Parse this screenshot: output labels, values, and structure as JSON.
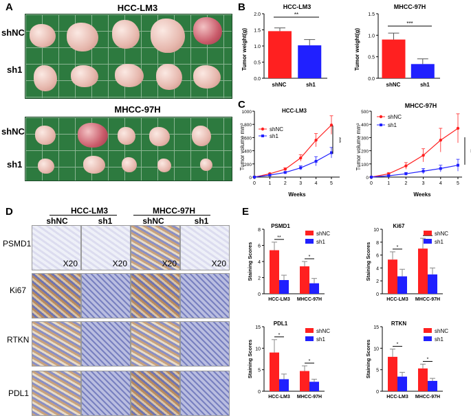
{
  "panel_letters": {
    "a": "A",
    "b": "B",
    "c": "C",
    "d": "D",
    "e": "E"
  },
  "panel_a": {
    "top_title": "HCC-LM3",
    "bottom_title": "MHCC-97H",
    "row_labels": {
      "top_1": "shNC",
      "top_2": "sh1",
      "bottom_1": "shNC",
      "bottom_2": "sh1"
    }
  },
  "panel_b": [
    {
      "title": "HCC-LM3",
      "ylabel": "Tumor weight(g)",
      "categories": [
        "shNC",
        "sh1"
      ],
      "sig": "**",
      "ticks": [
        "0.0",
        "0.5",
        "1.0",
        "1.5",
        "2.0"
      ]
    },
    {
      "title": "MHCC-97H",
      "ylabel": "Tumor weight(g)",
      "categories": [
        "shNC",
        "sh1"
      ],
      "sig": "***",
      "ticks": [
        "0.0",
        "0.5",
        "1.0",
        "1.5"
      ]
    }
  ],
  "panel_c": [
    {
      "title": "HCC-LM3",
      "ylabel": "Tumor volume mm³",
      "xlabel": "Weeks",
      "legend": [
        "shNC",
        "sh1"
      ],
      "sig": "***",
      "yticks": [
        "0",
        "200",
        "400",
        "600",
        "800",
        "1000"
      ],
      "xticks": [
        "0",
        "1",
        "2",
        "3",
        "4",
        "5"
      ]
    },
    {
      "title": "MHCC-97H",
      "ylabel": "Tumor volume mm³",
      "xlabel": "Weeks",
      "legend": [
        "shNC",
        "sh1"
      ],
      "sig": "**",
      "yticks": [
        "0",
        "100",
        "200",
        "300",
        "400",
        "500"
      ],
      "xticks": [
        "0",
        "1",
        "2",
        "3",
        "4",
        "5"
      ]
    }
  ],
  "panel_d": {
    "group_1": "HCC-LM3",
    "group_2": "MHCC-97H",
    "col_labels": [
      "shNC",
      "sh1",
      "shNC",
      "sh1"
    ],
    "row_labels": [
      "PSMD1",
      "Ki67",
      "RTKN",
      "PDL1"
    ],
    "magnification": "X20"
  },
  "panel_e": [
    {
      "title": "PSMD1",
      "ylabel": "Staining Scores",
      "legend": [
        "shNC",
        "sh1"
      ],
      "categories": [
        "HCC-LM3",
        "MHCC-97H"
      ],
      "sigs": [
        "**",
        "*"
      ],
      "yticks": [
        "0",
        "2",
        "4",
        "6",
        "8"
      ]
    },
    {
      "title": "Ki67",
      "ylabel": "Staining Scores",
      "legend": [
        "shNC",
        "sh1"
      ],
      "categories": [
        "HCC-LM3",
        "MHCC-97H"
      ],
      "sigs": [
        "*",
        "*"
      ],
      "yticks": [
        "0",
        "2",
        "4",
        "6",
        "8",
        "10"
      ]
    },
    {
      "title": "PDL1",
      "ylabel": "Staining Scores",
      "legend": [
        "shNC",
        "sh1"
      ],
      "categories": [
        "HCC-LM3",
        "MHCC-97H"
      ],
      "sigs": [
        "*",
        "*"
      ],
      "yticks": [
        "0",
        "5",
        "10",
        "15"
      ]
    },
    {
      "title": "RTKN",
      "ylabel": "Staining Scores",
      "legend": [
        "shNC",
        "sh1"
      ],
      "categories": [
        "HCC-LM3",
        "MHCC-97H"
      ],
      "sigs": [
        "*",
        "*"
      ],
      "yticks": [
        "0",
        "5",
        "10",
        "15"
      ]
    }
  ],
  "colors": {
    "shNC": "#ff2020",
    "sh1": "#2020ff"
  },
  "chart_data": [
    {
      "type": "bar",
      "title": "HCC-LM3",
      "ylabel": "Tumor weight(g)",
      "categories": [
        "shNC",
        "sh1"
      ],
      "values": [
        1.46,
        1.02
      ],
      "errors": [
        0.1,
        0.18
      ],
      "ylim": [
        0,
        2.0
      ]
    },
    {
      "type": "bar",
      "title": "MHCC-97H",
      "ylabel": "Tumor weight(g)",
      "categories": [
        "shNC",
        "sh1"
      ],
      "values": [
        0.9,
        0.33
      ],
      "errors": [
        0.15,
        0.12
      ],
      "ylim": [
        0,
        1.5
      ]
    },
    {
      "type": "line",
      "title": "HCC-LM3",
      "xlabel": "Weeks",
      "ylabel": "Tumor volume mm³",
      "x": [
        0,
        1,
        2,
        3,
        4,
        5
      ],
      "ylim": [
        0,
        1000
      ],
      "series": [
        {
          "name": "shNC",
          "values": [
            0,
            50,
            120,
            290,
            560,
            790
          ],
          "errors": [
            0,
            10,
            20,
            50,
            100,
            140
          ]
        },
        {
          "name": "sh1",
          "values": [
            0,
            30,
            70,
            140,
            240,
            370
          ],
          "errors": [
            0,
            8,
            15,
            30,
            70,
            80
          ]
        }
      ]
    },
    {
      "type": "line",
      "title": "MHCC-97H",
      "xlabel": "Weeks",
      "ylabel": "Tumor volume mm³",
      "x": [
        0,
        1,
        2,
        3,
        4,
        5
      ],
      "ylim": [
        0,
        500
      ],
      "series": [
        {
          "name": "shNC",
          "values": [
            0,
            25,
            85,
            165,
            280,
            370
          ],
          "errors": [
            0,
            8,
            25,
            50,
            90,
            110
          ]
        },
        {
          "name": "sh1",
          "values": [
            0,
            10,
            25,
            45,
            65,
            90
          ],
          "errors": [
            0,
            5,
            10,
            20,
            25,
            45
          ]
        }
      ]
    },
    {
      "type": "bar",
      "title": "PSMD1",
      "ylabel": "Staining Scores",
      "categories": [
        "HCC-LM3",
        "MHCC-97H"
      ],
      "series": [
        {
          "name": "shNC",
          "values": [
            5.4,
            3.4
          ],
          "errors": [
            1.0,
            0.6
          ]
        },
        {
          "name": "sh1",
          "values": [
            1.7,
            1.3
          ],
          "errors": [
            0.6,
            0.6
          ]
        }
      ],
      "ylim": [
        0,
        8
      ]
    },
    {
      "type": "bar",
      "title": "Ki67",
      "ylabel": "Staining Scores",
      "categories": [
        "HCC-LM3",
        "MHCC-97H"
      ],
      "series": [
        {
          "name": "shNC",
          "values": [
            5.3,
            7.0
          ],
          "errors": [
            1.2,
            1.6
          ]
        },
        {
          "name": "sh1",
          "values": [
            2.7,
            3.0
          ],
          "errors": [
            1.1,
            1.0
          ]
        }
      ],
      "ylim": [
        0,
        10
      ]
    },
    {
      "type": "bar",
      "title": "PDL1",
      "ylabel": "Staining Scores",
      "categories": [
        "HCC-LM3",
        "MHCC-97H"
      ],
      "series": [
        {
          "name": "shNC",
          "values": [
            9.0,
            4.7
          ],
          "errors": [
            3.0,
            1.2
          ]
        },
        {
          "name": "sh1",
          "values": [
            2.8,
            2.2
          ],
          "errors": [
            1.2,
            0.6
          ]
        }
      ],
      "ylim": [
        0,
        15
      ]
    },
    {
      "type": "bar",
      "title": "RTKN",
      "ylabel": "Staining Scores",
      "categories": [
        "HCC-LM3",
        "MHCC-97H"
      ],
      "series": [
        {
          "name": "shNC",
          "values": [
            8.0,
            5.3
          ],
          "errors": [
            1.8,
            1.0
          ]
        },
        {
          "name": "sh1",
          "values": [
            3.4,
            2.4
          ],
          "errors": [
            1.0,
            0.6
          ]
        }
      ],
      "ylim": [
        0,
        15
      ]
    }
  ]
}
